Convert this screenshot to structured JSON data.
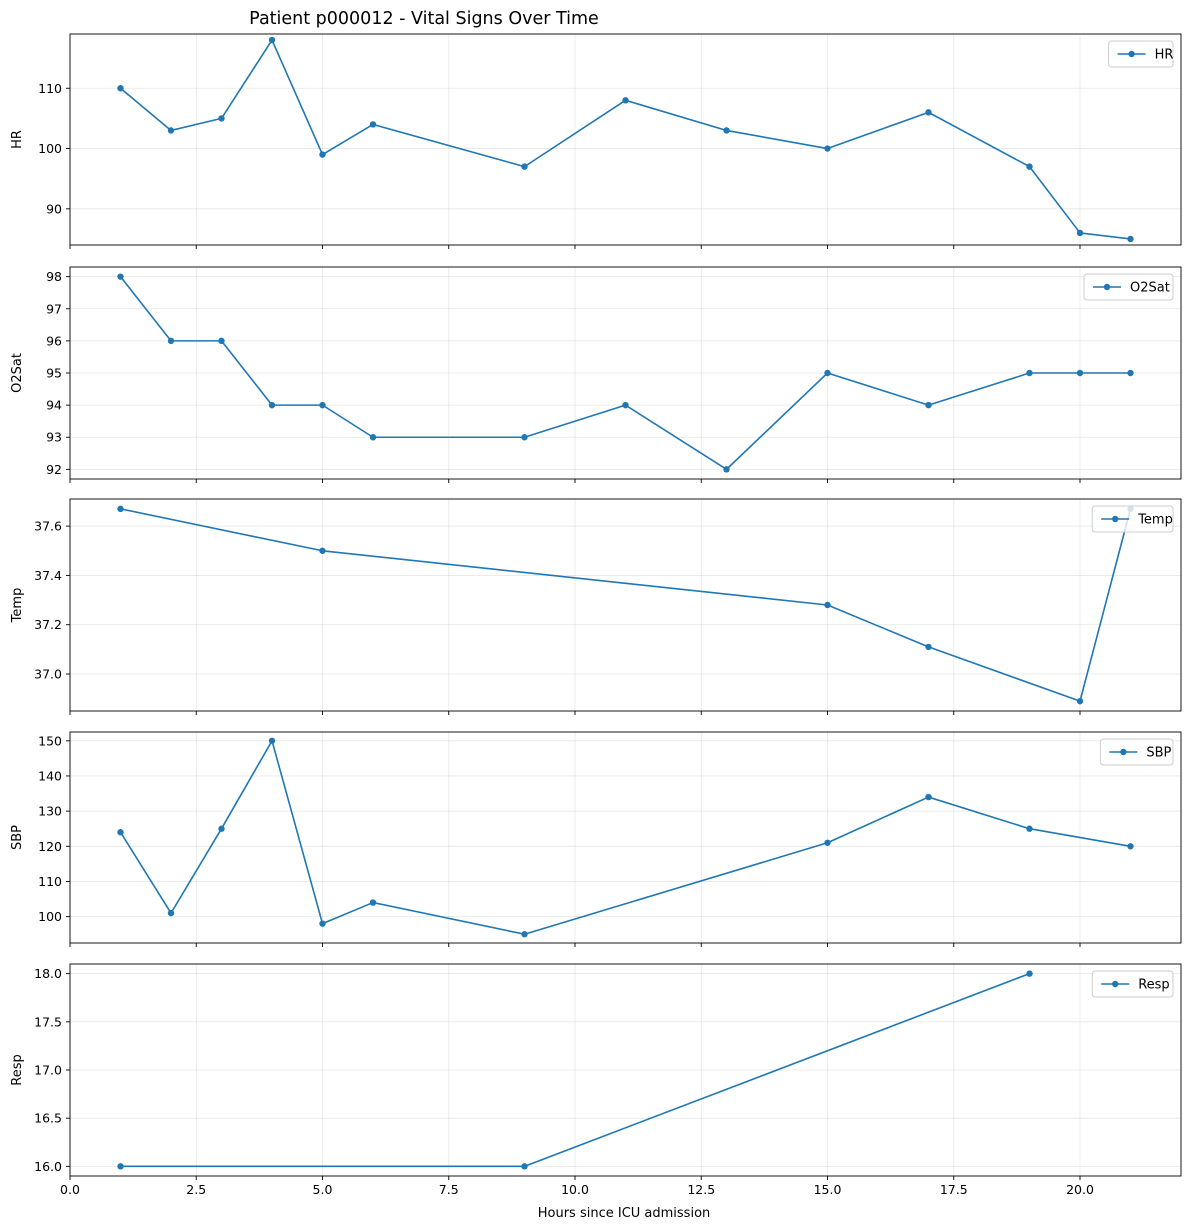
{
  "figure": {
    "title": "Patient p000012 - Vital Signs Over Time",
    "xlabel": "Hours since ICU admission"
  },
  "chart_data": {
    "type": "line",
    "title": "Patient p000012 - Vital Signs Over Time",
    "xlabel": "Hours since ICU admission",
    "xlim": [
      0,
      22
    ],
    "x_ticks": [
      0,
      2.5,
      5,
      7.5,
      10,
      12.5,
      15,
      17.5,
      20
    ],
    "x_tick_labels": [
      "0.0",
      "2.5",
      "5.0",
      "7.5",
      "10.0",
      "12.5",
      "15.0",
      "17.5",
      "20.0"
    ],
    "shared_x": true,
    "grid": true,
    "legend_placement": "top-right",
    "line_color": "#1f77b4",
    "panels": [
      {
        "name": "HR",
        "ylabel": "HR",
        "ylim": [
          84,
          119
        ],
        "y_ticks": [
          90,
          100,
          110
        ],
        "y_tick_labels": [
          "90",
          "100",
          "110"
        ],
        "x": [
          1,
          2,
          3,
          4,
          5,
          6,
          9,
          11,
          13,
          15,
          17,
          19,
          20,
          21
        ],
        "values": [
          110,
          103,
          105,
          118,
          99,
          104,
          97,
          108,
          103,
          100,
          106,
          97,
          86,
          85
        ]
      },
      {
        "name": "O2Sat",
        "ylabel": "O2Sat",
        "ylim": [
          91.7,
          98.3
        ],
        "y_ticks": [
          92,
          93,
          94,
          95,
          96,
          97,
          98
        ],
        "y_tick_labels": [
          "92",
          "93",
          "94",
          "95",
          "96",
          "97",
          "98"
        ],
        "x": [
          1,
          2,
          3,
          4,
          5,
          6,
          9,
          11,
          13,
          15,
          17,
          19,
          20,
          21
        ],
        "values": [
          98,
          96,
          96,
          94,
          94,
          93,
          93,
          94,
          92,
          95,
          94,
          95,
          95,
          95
        ]
      },
      {
        "name": "Temp",
        "ylabel": "Temp",
        "ylim": [
          36.85,
          37.71
        ],
        "y_ticks": [
          37.0,
          37.2,
          37.4,
          37.6
        ],
        "y_tick_labels": [
          "37.0",
          "37.2",
          "37.4",
          "37.6"
        ],
        "x": [
          1,
          5,
          15,
          17,
          20,
          21
        ],
        "values": [
          37.67,
          37.5,
          37.28,
          37.11,
          36.89,
          37.67
        ]
      },
      {
        "name": "SBP",
        "ylabel": "SBP",
        "ylim": [
          92.5,
          152.5
        ],
        "y_ticks": [
          100,
          110,
          120,
          130,
          140,
          150
        ],
        "y_tick_labels": [
          "100",
          "110",
          "120",
          "130",
          "140",
          "150"
        ],
        "x": [
          1,
          2,
          3,
          4,
          5,
          6,
          9,
          15,
          17,
          19,
          21
        ],
        "values": [
          124,
          101,
          125,
          150,
          98,
          104,
          95,
          121,
          134,
          125,
          120
        ]
      },
      {
        "name": "Resp",
        "ylabel": "Resp",
        "ylim": [
          15.9,
          18.1
        ],
        "y_ticks": [
          16.0,
          16.5,
          17.0,
          17.5,
          18.0
        ],
        "y_tick_labels": [
          "16.0",
          "16.5",
          "17.0",
          "17.5",
          "18.0"
        ],
        "x": [
          1,
          9,
          19
        ],
        "values": [
          16,
          16,
          18
        ]
      }
    ]
  }
}
